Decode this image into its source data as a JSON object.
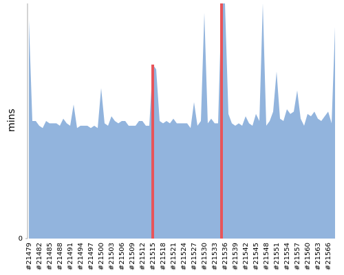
{
  "chart_data": {
    "type": "area",
    "y_label": "mins",
    "categories": [
      "#21479",
      null,
      null,
      "#21482",
      null,
      null,
      "#21485",
      null,
      null,
      "#21488",
      null,
      null,
      "#21491",
      null,
      null,
      "#21494",
      null,
      null,
      "#21497",
      null,
      null,
      "#21500",
      null,
      null,
      "#21503",
      null,
      null,
      "#21506",
      null,
      null,
      "#21509",
      null,
      null,
      "#21512",
      null,
      null,
      "#21515",
      null,
      null,
      "#21518",
      null,
      null,
      "#21521",
      null,
      null,
      "#21524",
      null,
      null,
      "#21527",
      null,
      null,
      "#21530",
      null,
      null,
      "#21533",
      null,
      null,
      "#21536",
      null,
      null,
      "#21539",
      null,
      null,
      "#21542",
      null,
      null,
      "#21545",
      null,
      null,
      "#21548",
      null,
      null,
      "#21551",
      null,
      null,
      "#21554",
      null,
      null,
      "#21557",
      null,
      null,
      "#21560",
      null,
      null,
      "#21563",
      null,
      null,
      "#21566",
      null,
      null
    ],
    "values": [
      93,
      50,
      50,
      48,
      47,
      50,
      49,
      49,
      49,
      48,
      51,
      49,
      48,
      57,
      47,
      48,
      48,
      48,
      47,
      48,
      47,
      64,
      49,
      48,
      52,
      50,
      49,
      50,
      50,
      48,
      48,
      48,
      50,
      50,
      48,
      48,
      74,
      72,
      50,
      49,
      50,
      49,
      51,
      49,
      49,
      49,
      49,
      47,
      58,
      48,
      50,
      96,
      49,
      51,
      49,
      49,
      100,
      100,
      53,
      49,
      48,
      49,
      48,
      52,
      49,
      48,
      53,
      50,
      100,
      48,
      50,
      54,
      71,
      51,
      50,
      55,
      53,
      54,
      63,
      51,
      48,
      53,
      52,
      54,
      51,
      50,
      52,
      54,
      49,
      90
    ],
    "color": "#92b4dd",
    "highlight": {
      "color": "#e8555a",
      "indices": [
        36,
        56
      ]
    },
    "ylim": [
      0,
      100
    ],
    "yticks": [
      0
    ],
    "grid": false
  }
}
